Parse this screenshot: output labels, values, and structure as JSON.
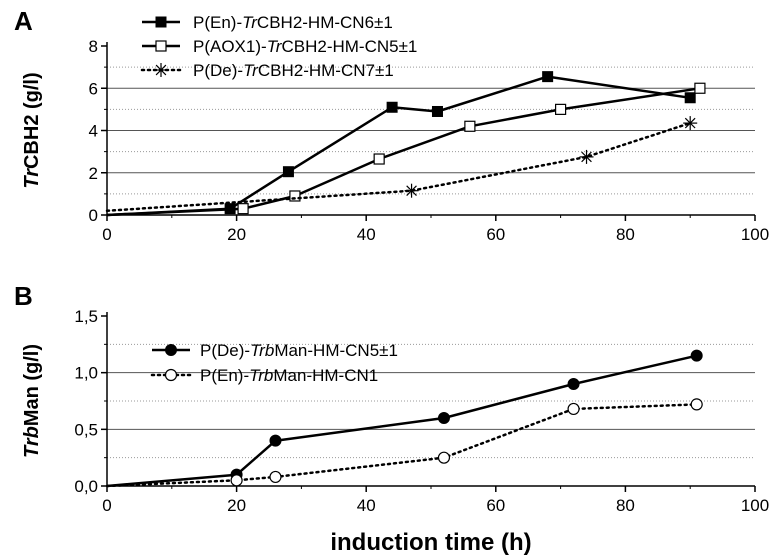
{
  "xlabel": "induction time (h)",
  "chart_data": [
    {
      "panel": "A",
      "type": "line",
      "ylabel_italic": "Tr",
      "ylabel_rest": "CBH2 (g/l)",
      "xlim": [
        0,
        100
      ],
      "ylim": [
        0,
        8
      ],
      "x_ticks": [
        "0",
        "20",
        "40",
        "60",
        "80",
        "100"
      ],
      "y_ticks": [
        "0",
        "2",
        "4",
        "6",
        "8"
      ],
      "grid": "horizontal major solid, minor dotted",
      "legend_position": "top-left",
      "series": [
        {
          "name_prefix": "P(En)-",
          "name_italic": "Tr",
          "name_suffix": "CBH2-HM-CN6±1",
          "marker": "filled-square",
          "line": "solid",
          "x": [
            0,
            19,
            28,
            44,
            51,
            68,
            90
          ],
          "y": [
            0,
            0.3,
            2.05,
            5.1,
            4.9,
            6.55,
            5.55
          ]
        },
        {
          "name_prefix": "P(AOX1)-",
          "name_italic": "Tr",
          "name_suffix": "CBH2-HM-CN5±1",
          "marker": "open-square",
          "line": "solid",
          "x": [
            0,
            21,
            29,
            42,
            56,
            70,
            91.5
          ],
          "y": [
            0,
            0.3,
            0.9,
            2.65,
            4.2,
            5.0,
            6.0
          ]
        },
        {
          "name_prefix": "P(De)-",
          "name_italic": "Tr",
          "name_suffix": "CBH2-HM-CN7±1",
          "marker": "asterisk",
          "line": "dotted",
          "x": [
            0,
            47,
            74,
            90
          ],
          "y": [
            0.2,
            1.15,
            2.75,
            4.35
          ]
        }
      ]
    },
    {
      "panel": "B",
      "type": "line",
      "ylabel_italic": "Trb",
      "ylabel_rest": "Man (g/l)",
      "xlim": [
        0,
        100
      ],
      "ylim": [
        0,
        1.5
      ],
      "x_ticks": [
        "0",
        "20",
        "40",
        "60",
        "80",
        "100"
      ],
      "y_ticks": [
        "0,0",
        "0,5",
        "1,0",
        "1,5"
      ],
      "grid": "horizontal major solid, minor dotted",
      "legend_position": "top-left",
      "series": [
        {
          "name_prefix": "P(De)-",
          "name_italic": "Trb",
          "name_suffix": "Man-HM-CN5±1",
          "marker": "filled-circle",
          "line": "solid",
          "x": [
            0,
            20,
            26,
            52,
            72,
            91
          ],
          "y": [
            0,
            0.1,
            0.4,
            0.6,
            0.9,
            1.15
          ]
        },
        {
          "name_prefix": "P(En)-",
          "name_italic": "Trb",
          "name_suffix": "Man-HM-CN1",
          "marker": "open-circle",
          "line": "dotted",
          "x": [
            0,
            20,
            26,
            52,
            72,
            91
          ],
          "y": [
            0,
            0.05,
            0.08,
            0.25,
            0.68,
            0.72
          ]
        }
      ]
    }
  ]
}
